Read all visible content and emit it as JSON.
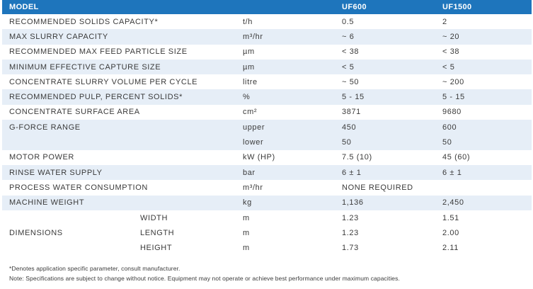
{
  "header": {
    "model": "MODEL",
    "col_uf600": "UF600",
    "col_uf1500": "UF1500"
  },
  "rows": [
    {
      "param": "RECOMMENDED SOLIDS CAPACITY*",
      "unit": "t/h",
      "uf600": "0.5",
      "uf1500": "2"
    },
    {
      "param": "MAX SLURRY CAPACITY",
      "unit": "m³/hr",
      "uf600": "~ 6",
      "uf1500": "~ 20"
    },
    {
      "param": "RECOMMENDED MAX FEED PARTICLE SIZE",
      "unit": "µm",
      "uf600": "< 38",
      "uf1500": "< 38"
    },
    {
      "param": "MINIMUM EFFECTIVE CAPTURE SIZE",
      "unit": "µm",
      "uf600": "< 5",
      "uf1500": "< 5"
    },
    {
      "param": "CONCENTRATE SLURRY VOLUME PER CYCLE",
      "unit": "litre",
      "uf600": "~ 50",
      "uf1500": "~ 200"
    },
    {
      "param": "RECOMMENDED PULP, PERCENT SOLIDS*",
      "unit": "%",
      "uf600": "5 - 15",
      "uf1500": "5 - 15"
    },
    {
      "param": "CONCENTRATE SURFACE AREA",
      "unit": "cm²",
      "uf600": "3871",
      "uf1500": "9680"
    }
  ],
  "gforce": {
    "param": "G-FORCE RANGE",
    "upper_label": "upper",
    "upper_uf600": "450",
    "upper_uf1500": "600",
    "lower_label": "lower",
    "lower_uf600": "50",
    "lower_uf1500": "50"
  },
  "rows2": [
    {
      "param": "MOTOR POWER",
      "unit": "kW (HP)",
      "uf600": "7.5 (10)",
      "uf1500": "45 (60)"
    },
    {
      "param": "RINSE WATER SUPPLY",
      "unit": "bar",
      "uf600": "6 ± 1",
      "uf1500": "6 ± 1"
    },
    {
      "param": "PROCESS WATER CONSUMPTION",
      "unit": "m³/hr",
      "uf600": "NONE REQUIRED",
      "uf1500": ""
    },
    {
      "param": "MACHINE WEIGHT",
      "unit": "kg",
      "uf600": "1,136",
      "uf1500": "2,450"
    }
  ],
  "dimensions": {
    "param": "DIMENSIONS",
    "items": [
      {
        "label": "WIDTH",
        "unit": "m",
        "uf600": "1.23",
        "uf1500": "1.51"
      },
      {
        "label": "LENGTH",
        "unit": "m",
        "uf600": "1.23",
        "uf1500": "2.00"
      },
      {
        "label": "HEIGHT",
        "unit": "m",
        "uf600": "1.73",
        "uf1500": "2.11"
      }
    ]
  },
  "notes": {
    "line1": "*Denotes application specific parameter, consult manufacturer.",
    "line2": "Note: Specifications are subject to change without notice. Equipment may not operate or achieve best performance under maximum capacities."
  }
}
